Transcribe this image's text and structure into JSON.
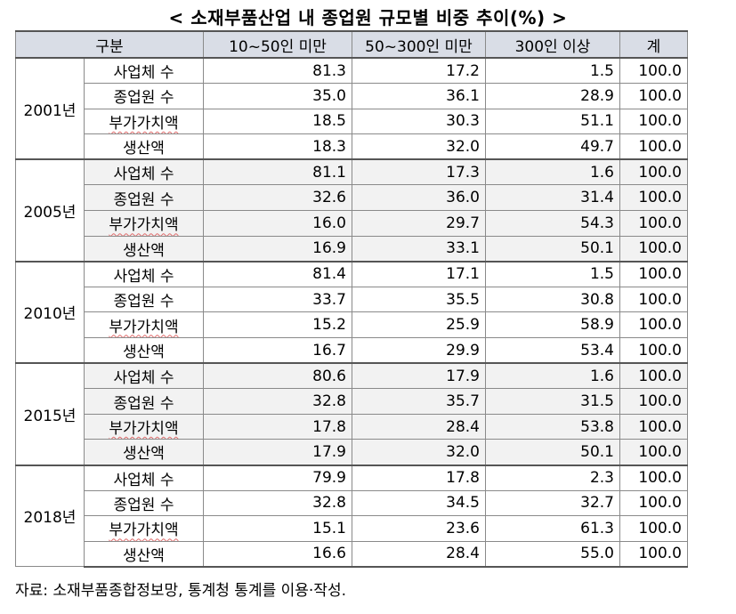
{
  "title": "< 소재부품산업 내 종업원 규모별 비중 추이(%) >",
  "headers": [
    "구분",
    "10~50인 미만",
    "50~300인 미만",
    "300인 이상",
    "계"
  ],
  "blocks": [
    {
      "year": "2001년",
      "shade": false,
      "rows": [
        {
          "label": "사업체 수",
          "values": [
            "81.3",
            "17.2",
            "1.5",
            "100.0"
          ]
        },
        {
          "label": "종업원 수",
          "values": [
            "35.0",
            "36.1",
            "28.9",
            "100.0"
          ]
        },
        {
          "label": "부가가치액",
          "values": [
            "18.5",
            "30.3",
            "51.1",
            "100.0"
          ]
        },
        {
          "label": "생산액",
          "values": [
            "18.3",
            "32.0",
            "49.7",
            "100.0"
          ]
        }
      ]
    },
    {
      "year": "2005년",
      "shade": true,
      "rows": [
        {
          "label": "사업체 수",
          "values": [
            "81.1",
            "17.3",
            "1.6",
            "100.0"
          ]
        },
        {
          "label": "종업원 수",
          "values": [
            "32.6",
            "36.0",
            "31.4",
            "100.0"
          ]
        },
        {
          "label": "부가가치액",
          "values": [
            "16.0",
            "29.7",
            "54.3",
            "100.0"
          ]
        },
        {
          "label": "생산액",
          "values": [
            "16.9",
            "33.1",
            "50.1",
            "100.0"
          ]
        }
      ]
    },
    {
      "year": "2010년",
      "shade": false,
      "rows": [
        {
          "label": "사업체 수",
          "values": [
            "81.4",
            "17.1",
            "1.5",
            "100.0"
          ]
        },
        {
          "label": "종업원 수",
          "values": [
            "33.7",
            "35.5",
            "30.8",
            "100.0"
          ]
        },
        {
          "label": "부가가치액",
          "values": [
            "15.2",
            "25.9",
            "58.9",
            "100.0"
          ]
        },
        {
          "label": "생산액",
          "values": [
            "16.7",
            "29.9",
            "53.4",
            "100.0"
          ]
        }
      ]
    },
    {
      "year": "2015년",
      "shade": true,
      "rows": [
        {
          "label": "사업체 수",
          "values": [
            "80.6",
            "17.9",
            "1.6",
            "100.0"
          ]
        },
        {
          "label": "종업원 수",
          "values": [
            "32.8",
            "35.7",
            "31.5",
            "100.0"
          ]
        },
        {
          "label": "부가가치액",
          "values": [
            "17.8",
            "28.4",
            "53.8",
            "100.0"
          ]
        },
        {
          "label": "생산액",
          "values": [
            "17.9",
            "32.0",
            "50.1",
            "100.0"
          ]
        }
      ]
    },
    {
      "year": "2018년",
      "shade": false,
      "rows": [
        {
          "label": "사업체 수",
          "values": [
            "79.9",
            "17.8",
            "2.3",
            "100.0"
          ]
        },
        {
          "label": "종업원 수",
          "values": [
            "32.8",
            "34.5",
            "32.7",
            "100.0"
          ]
        },
        {
          "label": "부가가치액",
          "values": [
            "15.1",
            "23.6",
            "61.3",
            "100.0"
          ]
        },
        {
          "label": "생산액",
          "values": [
            "16.6",
            "28.4",
            "55.0",
            "100.0"
          ]
        }
      ]
    }
  ],
  "source": "자료: 소재부품종합정보망, 통계청 통계를 이용·작성."
}
